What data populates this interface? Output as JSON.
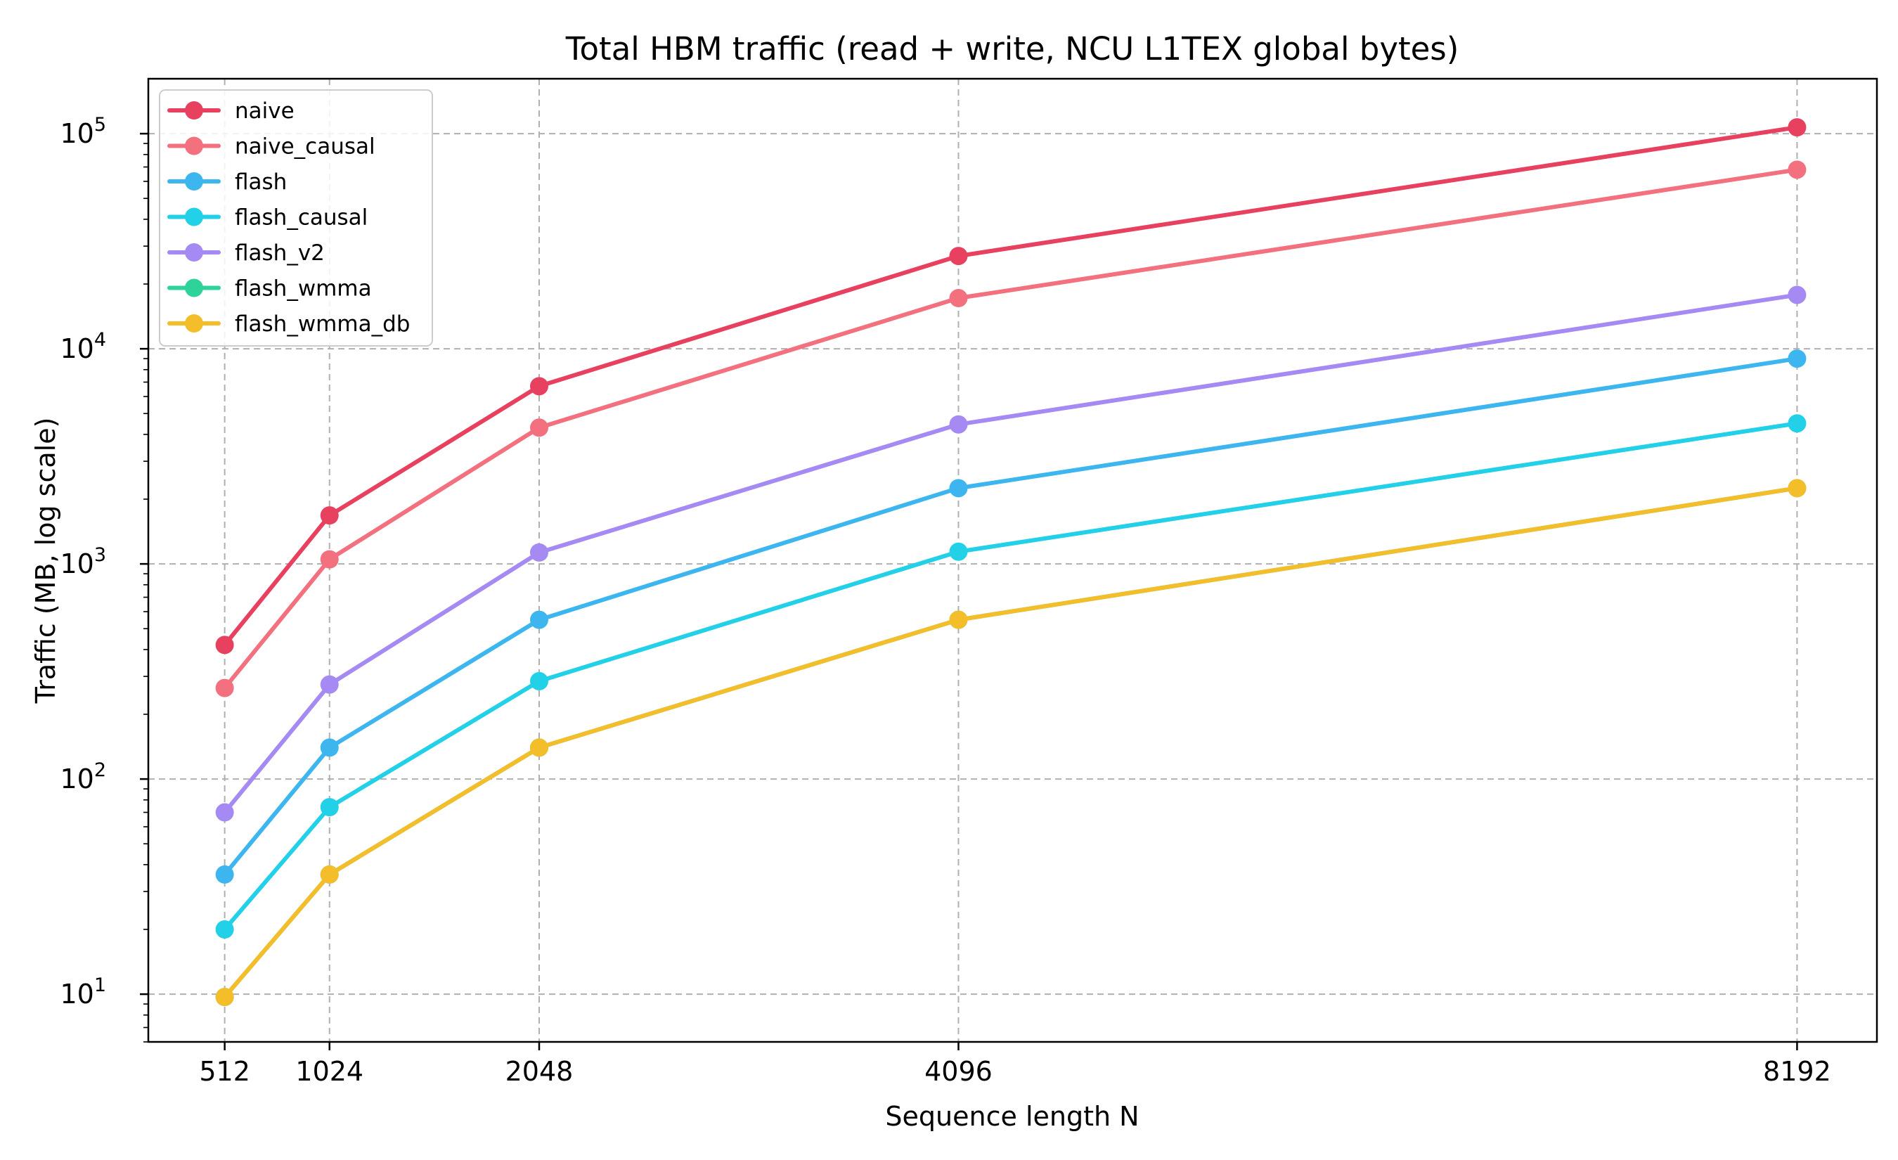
{
  "chart_data": {
    "type": "line",
    "title": "Total HBM traffic (read + write, NCU L1TEX global bytes)",
    "xlabel": "Sequence length N",
    "ylabel": "Traffic (MB, log scale)",
    "yscale": "log",
    "x": [
      512,
      1024,
      2048,
      4096,
      8192
    ],
    "x_tick_labels": [
      "512",
      "1024",
      "2048",
      "4096",
      "8192"
    ],
    "xlim": [
      139,
      8582
    ],
    "ylim": [
      6,
      180000
    ],
    "y_ticks": [
      {
        "value": 10,
        "base": "10",
        "exp": "1"
      },
      {
        "value": 100,
        "base": "10",
        "exp": "2"
      },
      {
        "value": 1000,
        "base": "10",
        "exp": "3"
      },
      {
        "value": 10000,
        "base": "10",
        "exp": "4"
      },
      {
        "value": 100000,
        "base": "10",
        "exp": "5"
      }
    ],
    "grid": true,
    "legend_position": "top-left",
    "series": [
      {
        "name": "naive",
        "color": "#e8405f",
        "values": [
          420,
          1680,
          6700,
          27000,
          107000
        ]
      },
      {
        "name": "naive_causal",
        "color": "#f3707f",
        "values": [
          265,
          1050,
          4300,
          17200,
          68000
        ]
      },
      {
        "name": "flash",
        "color": "#3db6f0",
        "values": [
          36,
          140,
          550,
          2250,
          9000
        ]
      },
      {
        "name": "flash_causal",
        "color": "#22d0e8",
        "values": [
          20,
          74,
          285,
          1140,
          4500
        ]
      },
      {
        "name": "flash_v2",
        "color": "#a48af2",
        "values": [
          70,
          275,
          1130,
          4450,
          17800
        ]
      },
      {
        "name": "flash_wmma",
        "color": "#2ed39a",
        "values": [
          9.7,
          36,
          140,
          550,
          2250
        ]
      },
      {
        "name": "flash_wmma_db",
        "color": "#f4bd2a",
        "values": [
          9.7,
          36,
          140,
          550,
          2250
        ]
      }
    ]
  }
}
